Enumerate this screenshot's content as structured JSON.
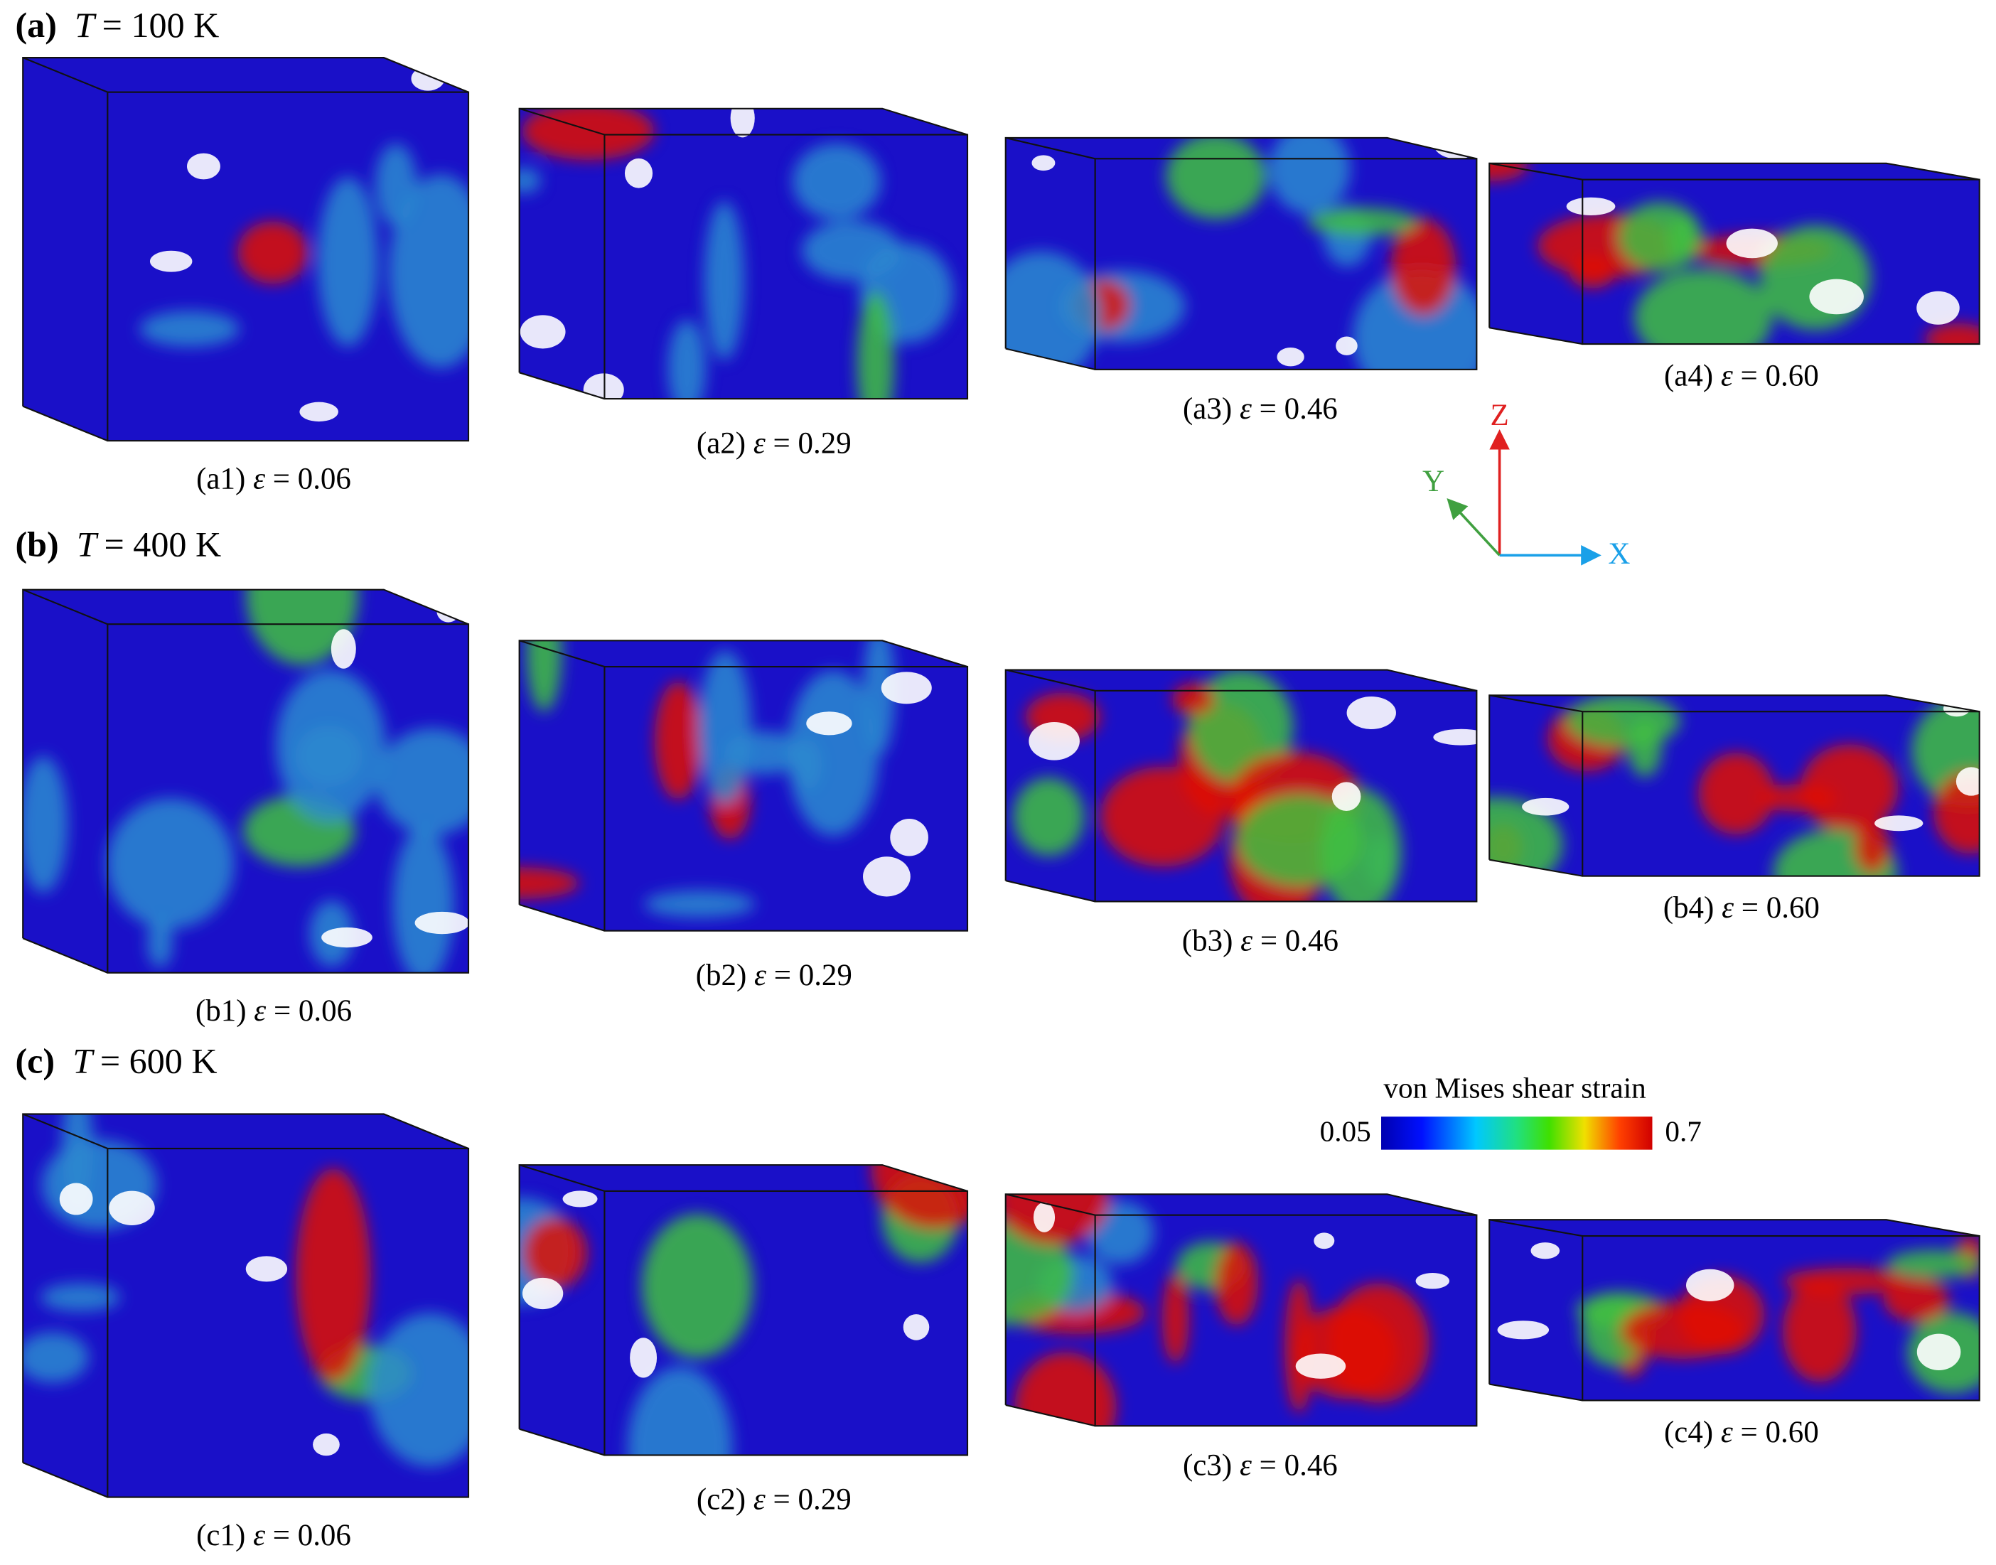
{
  "rows": [
    {
      "label": "(a)",
      "var": "T",
      "text": "= 100 K",
      "panels": [
        {
          "label": "(a1)",
          "var": "ε",
          "text": "= 0.06"
        },
        {
          "label": "(a2)",
          "var": "ε",
          "text": "= 0.29"
        },
        {
          "label": "(a3)",
          "var": "ε",
          "text": "= 0.46"
        },
        {
          "label": "(a4)",
          "var": "ε",
          "text": "= 0.60"
        }
      ]
    },
    {
      "label": "(b)",
      "var": "T",
      "text": "= 400 K",
      "panels": [
        {
          "label": "(b1)",
          "var": "ε",
          "text": "= 0.06"
        },
        {
          "label": "(b2)",
          "var": "ε",
          "text": "= 0.29"
        },
        {
          "label": "(b3)",
          "var": "ε",
          "text": "= 0.46"
        },
        {
          "label": "(b4)",
          "var": "ε",
          "text": "= 0.60"
        }
      ]
    },
    {
      "label": "(c)",
      "var": "T",
      "text": "= 600 K",
      "panels": [
        {
          "label": "(c1)",
          "var": "ε",
          "text": "= 0.06"
        },
        {
          "label": "(c2)",
          "var": "ε",
          "text": "= 0.29"
        },
        {
          "label": "(c3)",
          "var": "ε",
          "text": "= 0.46"
        },
        {
          "label": "(c4)",
          "var": "ε",
          "text": "= 0.60"
        }
      ]
    }
  ],
  "axes": {
    "z": "Z",
    "y": "Y",
    "x": "X"
  },
  "colorbar": {
    "title": "von Mises shear strain",
    "min": 0.05,
    "max": 0.7
  }
}
